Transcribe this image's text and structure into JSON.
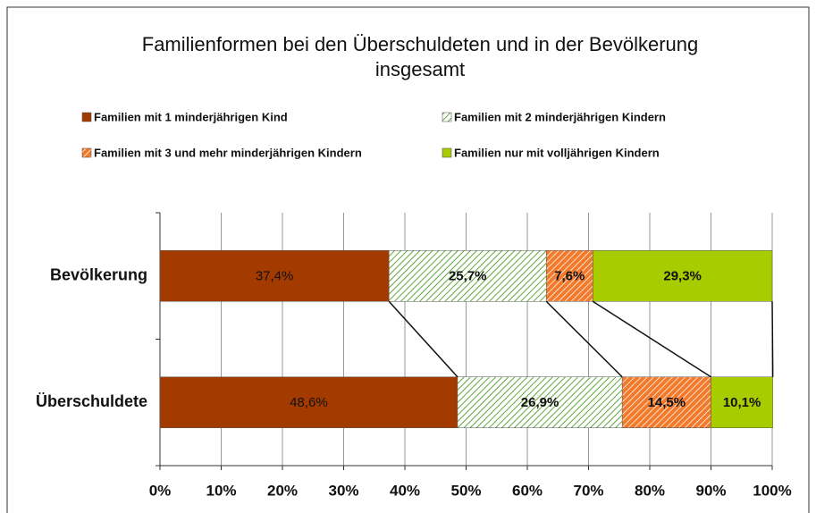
{
  "chart_data": {
    "type": "stacked-bar-horizontal",
    "title": "Familienformen bei den Überschuldeten und in der Bevölkerung insgesamt",
    "categories": [
      "Bevölkerung",
      "Überschuldete"
    ],
    "series": [
      {
        "name": "Familien mit 1 minderjährigen Kind",
        "color": "#a33a00",
        "values": [
          37.4,
          48.6
        ],
        "value_labels": [
          "37,4%",
          "48,6%"
        ]
      },
      {
        "name": "Familien mit 2 minderjährigen Kindern",
        "color": "#5fa83a",
        "pattern": "hatch-light",
        "values": [
          25.7,
          26.9
        ],
        "value_labels": [
          "25,7%",
          "26,9%"
        ]
      },
      {
        "name": "Familien mit 3 und mehr minderjährigen Kindern",
        "color": "#f27a2a",
        "pattern": "hatch-dark",
        "values": [
          7.6,
          14.5
        ],
        "value_labels": [
          "7,6%",
          "14,5%"
        ]
      },
      {
        "name": "Familien nur mit volljährigen Kindern",
        "color": "#a8cc00",
        "values": [
          29.3,
          10.1
        ],
        "value_labels": [
          "29,3%",
          "10,1%"
        ]
      }
    ],
    "xlim": [
      0,
      100
    ],
    "xticks": [
      {
        "value": 0,
        "label": "0%"
      },
      {
        "value": 10,
        "label": "10%"
      },
      {
        "value": 20,
        "label": "20%"
      },
      {
        "value": 30,
        "label": "30%"
      },
      {
        "value": 40,
        "label": "40%"
      },
      {
        "value": 50,
        "label": "50%"
      },
      {
        "value": 60,
        "label": "60%"
      },
      {
        "value": 70,
        "label": "70%"
      },
      {
        "value": 80,
        "label": "80%"
      },
      {
        "value": 90,
        "label": "90%"
      },
      {
        "value": 100,
        "label": "100%"
      }
    ],
    "grid": true
  }
}
